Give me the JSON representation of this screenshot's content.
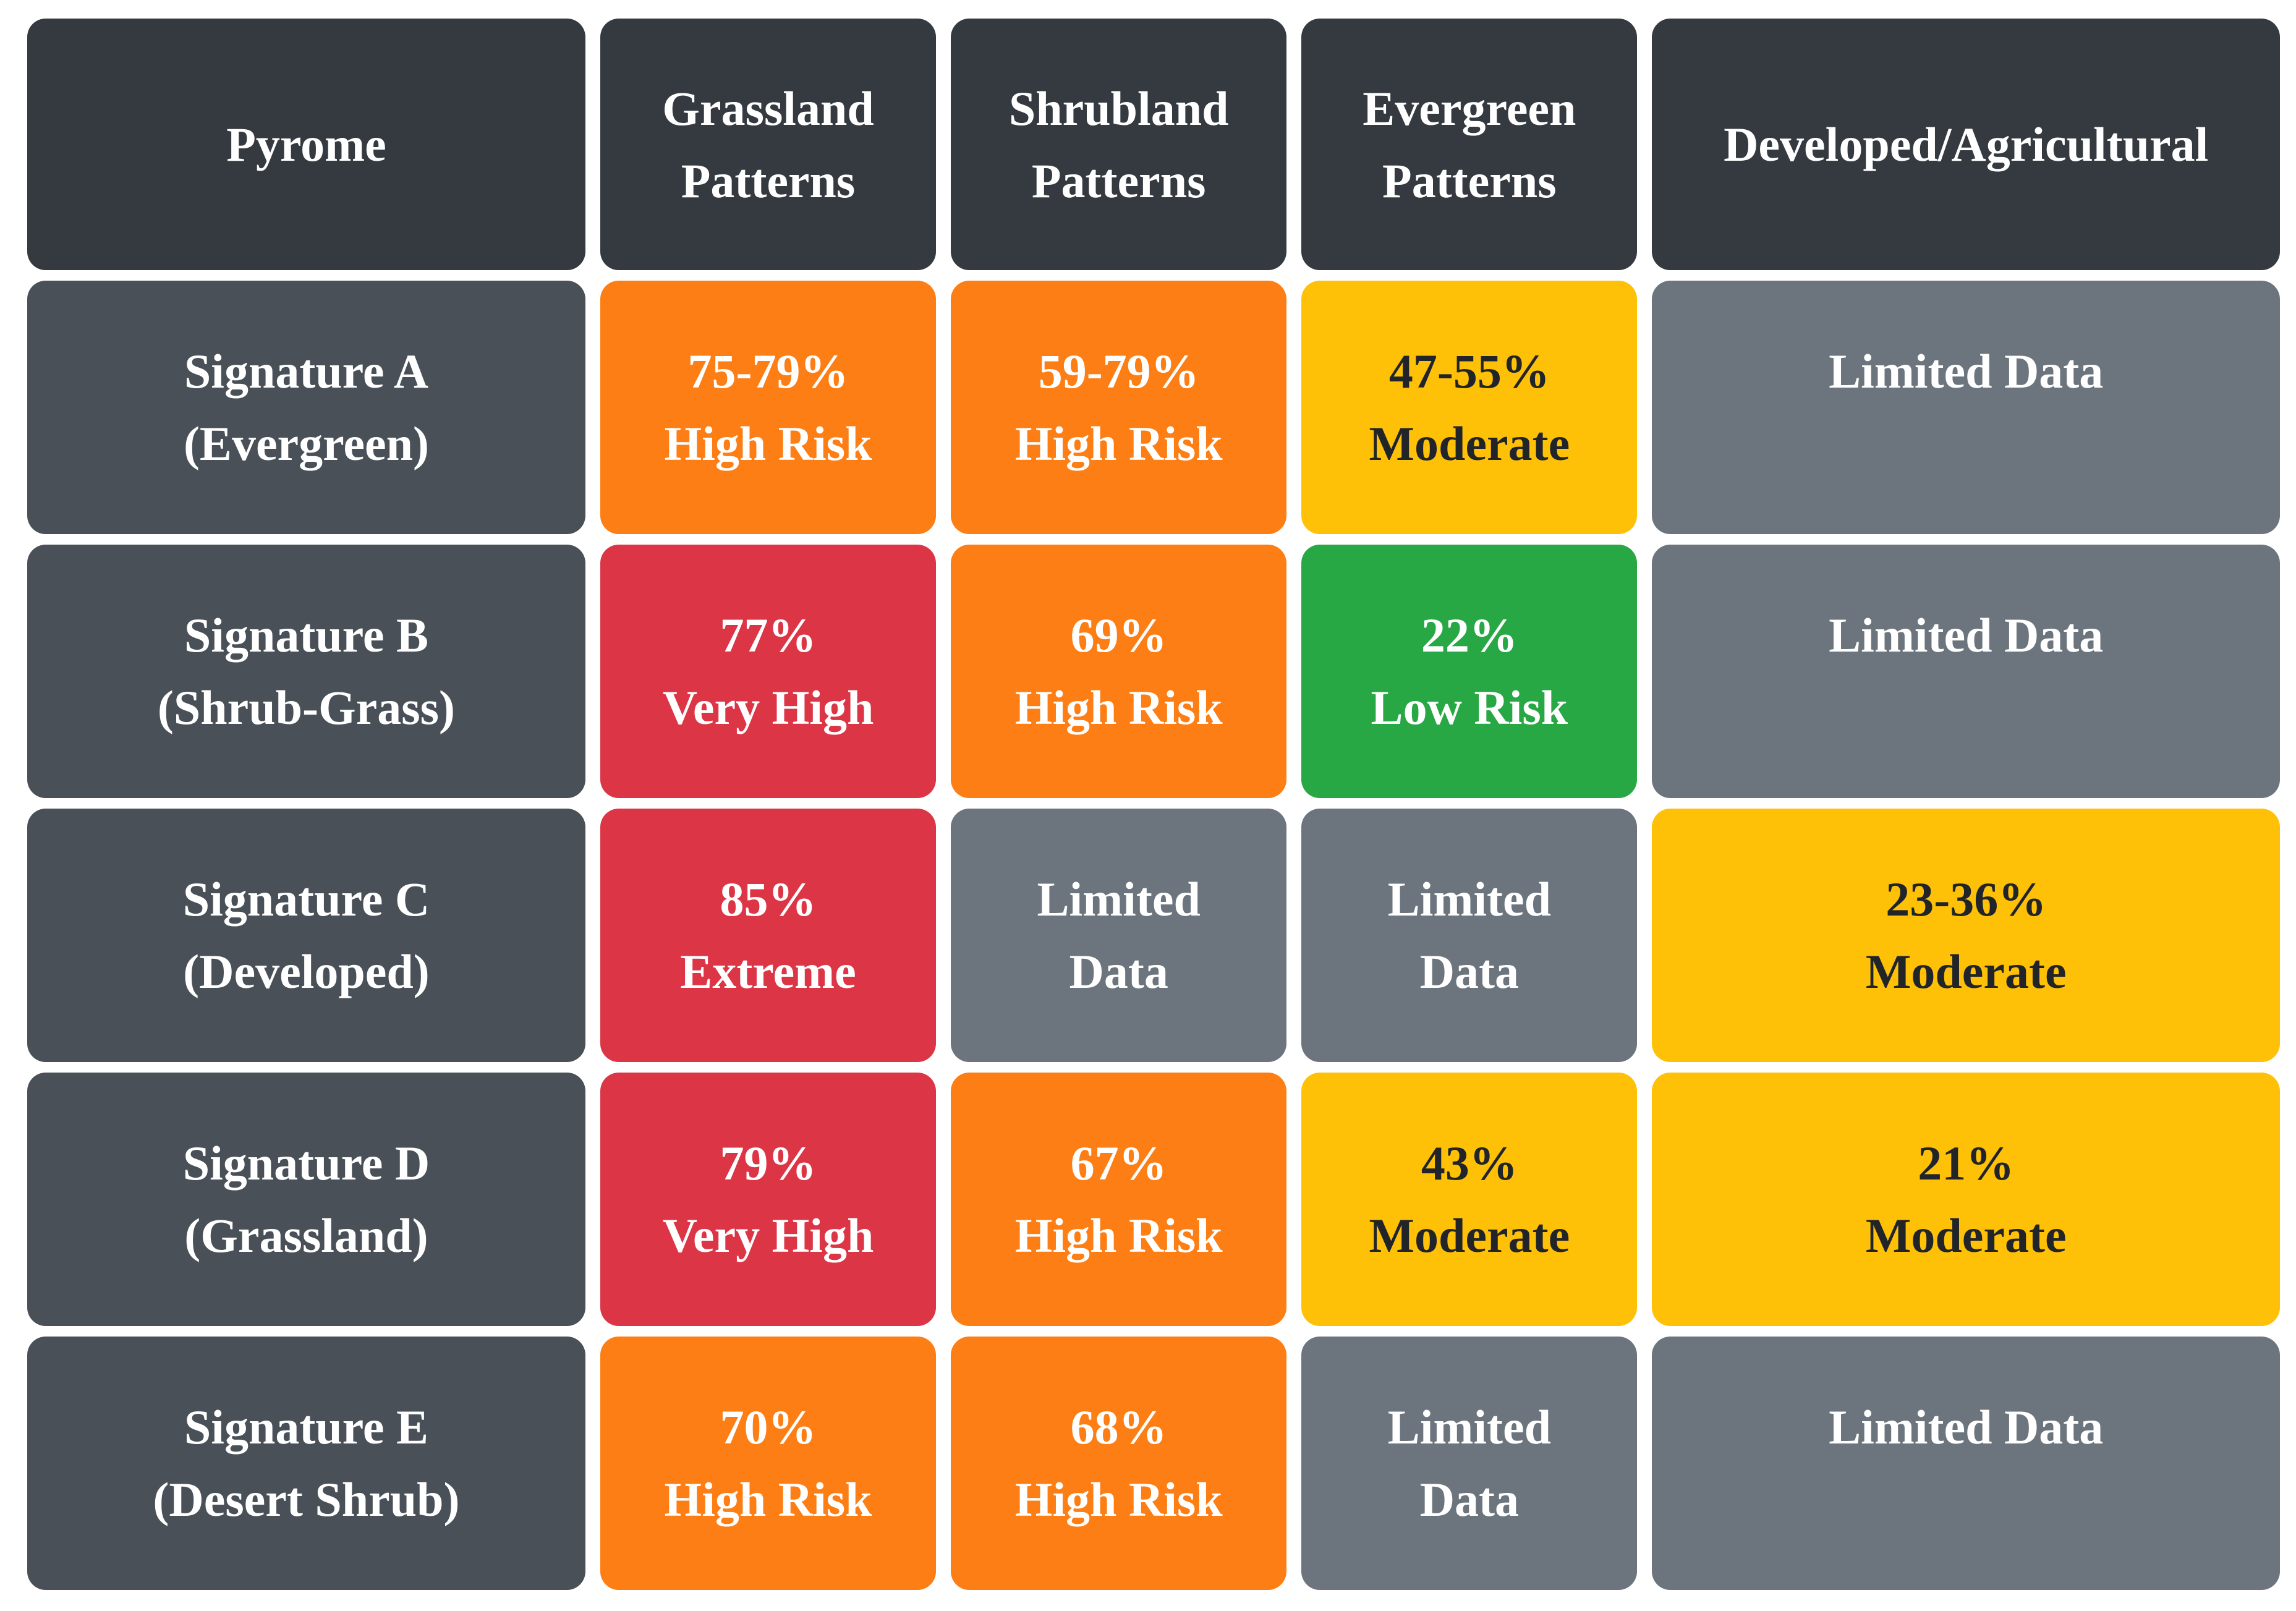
{
  "colors": {
    "page": "#ffffff",
    "header": "#343a40",
    "rowlabel": "#495057",
    "extreme": "#dc3545",
    "high": "#fd7e14",
    "moderate": "#ffc107",
    "low": "#28a745",
    "nodata": "#6c757d",
    "text-light": "#ffffff",
    "text-dark": "#212529"
  },
  "chart_data": {
    "type": "table",
    "title": "",
    "columns": [
      "Pyrome",
      "Grassland Patterns",
      "Shrubland Patterns",
      "Evergreen Patterns",
      "Developed/Agricultural"
    ],
    "header_lines": [
      [
        "Pyrome"
      ],
      [
        "Grassland",
        "Patterns"
      ],
      [
        "Shrubland",
        "Patterns"
      ],
      [
        "Evergreen",
        "Patterns"
      ],
      [
        "Developed/Agricultural"
      ]
    ],
    "risk_levels_legend": {
      "extreme": "Extreme (red)",
      "veryhigh": "Very High (red)",
      "high": "High Risk (orange)",
      "moderate": "Moderate (yellow)",
      "low": "Low Risk (green)",
      "nodata": "Limited Data (gray)"
    },
    "rows": [
      {
        "pyrome": "Signature A (Evergreen)",
        "label_lines": [
          "Signature A",
          "(Evergreen)"
        ],
        "cells": [
          {
            "lines": [
              "75-79%",
              "High Risk"
            ],
            "level": "high"
          },
          {
            "lines": [
              "59-79%",
              "High Risk"
            ],
            "level": "high"
          },
          {
            "lines": [
              "47-55%",
              "Moderate"
            ],
            "level": "moderate"
          },
          {
            "lines": [
              "Limited Data"
            ],
            "level": "nodata"
          }
        ]
      },
      {
        "pyrome": "Signature B (Shrub-Grass)",
        "label_lines": [
          "Signature B",
          "(Shrub-Grass)"
        ],
        "cells": [
          {
            "lines": [
              "77%",
              "Very High"
            ],
            "level": "veryhigh"
          },
          {
            "lines": [
              "69%",
              "High Risk"
            ],
            "level": "high"
          },
          {
            "lines": [
              "22%",
              "Low Risk"
            ],
            "level": "low"
          },
          {
            "lines": [
              "Limited Data"
            ],
            "level": "nodata"
          }
        ]
      },
      {
        "pyrome": "Signature C (Developed)",
        "label_lines": [
          "Signature C",
          "(Developed)"
        ],
        "cells": [
          {
            "lines": [
              "85%",
              "Extreme"
            ],
            "level": "extreme"
          },
          {
            "lines": [
              "Limited",
              "Data"
            ],
            "level": "nodata"
          },
          {
            "lines": [
              "Limited",
              "Data"
            ],
            "level": "nodata"
          },
          {
            "lines": [
              "23-36%",
              "Moderate"
            ],
            "level": "moderate"
          }
        ]
      },
      {
        "pyrome": "Signature D (Grassland)",
        "label_lines": [
          "Signature D",
          "(Grassland)"
        ],
        "cells": [
          {
            "lines": [
              "79%",
              "Very High"
            ],
            "level": "veryhigh"
          },
          {
            "lines": [
              "67%",
              "High Risk"
            ],
            "level": "high"
          },
          {
            "lines": [
              "43%",
              "Moderate"
            ],
            "level": "moderate"
          },
          {
            "lines": [
              "21%",
              "Moderate"
            ],
            "level": "moderate"
          }
        ]
      },
      {
        "pyrome": "Signature E (Desert Shrub)",
        "label_lines": [
          "Signature E",
          "(Desert Shrub)"
        ],
        "cells": [
          {
            "lines": [
              "70%",
              "High Risk"
            ],
            "level": "high"
          },
          {
            "lines": [
              "68%",
              "High Risk"
            ],
            "level": "high"
          },
          {
            "lines": [
              "Limited",
              "Data"
            ],
            "level": "nodata"
          },
          {
            "lines": [
              "Limited Data"
            ],
            "level": "nodata"
          }
        ]
      }
    ]
  }
}
